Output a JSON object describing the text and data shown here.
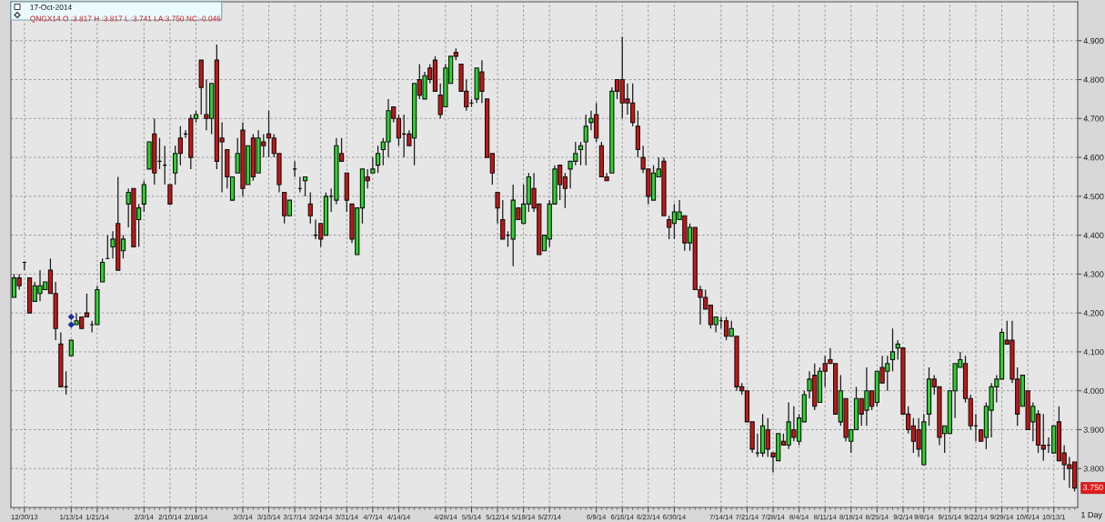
{
  "chart_data": {
    "type": "candlestick",
    "categories": [
      null,
      null,
      "12/30/13",
      null,
      null,
      null,
      null,
      null,
      null,
      null,
      null,
      "1/13/14",
      null,
      null,
      null,
      null,
      "1/21/14",
      null,
      null,
      null,
      null,
      null,
      null,
      null,
      null,
      "2/3/14",
      null,
      null,
      null,
      null,
      "2/10/14",
      null,
      null,
      null,
      null,
      "2/18/14",
      null,
      null,
      null,
      null,
      null,
      null,
      null,
      null,
      "3/3/14",
      null,
      null,
      null,
      null,
      "3/10/14",
      null,
      null,
      null,
      null,
      "3/17/14",
      null,
      null,
      null,
      null,
      "3/24/14",
      null,
      null,
      null,
      null,
      "3/31/14",
      null,
      null,
      null,
      null,
      "4/7/14",
      null,
      null,
      null,
      null,
      "4/14/14",
      null,
      null,
      null,
      null,
      null,
      null,
      null,
      null,
      "4/28/14",
      null,
      null,
      null,
      null,
      "5/5/14",
      null,
      null,
      null,
      null,
      "5/12/14",
      null,
      null,
      null,
      null,
      "5/19/14",
      null,
      null,
      null,
      null,
      "5/27/14",
      null,
      null,
      null,
      null,
      null,
      null,
      null,
      null,
      "6/9/14",
      null,
      null,
      null,
      null,
      "6/16/14",
      null,
      null,
      null,
      null,
      "6/23/14",
      null,
      null,
      null,
      null,
      "6/30/14",
      null,
      null,
      null,
      null,
      null,
      null,
      null,
      null,
      "7/14/14",
      null,
      null,
      null,
      null,
      "7/21/14",
      null,
      null,
      null,
      null,
      "7/28/14",
      null,
      null,
      null,
      null,
      "8/4/14",
      null,
      null,
      null,
      null,
      "8/11/14",
      null,
      null,
      null,
      null,
      "8/18/14",
      null,
      null,
      null,
      null,
      "8/25/14",
      null,
      null,
      null,
      null,
      "9/2/14",
      null,
      null,
      null,
      "9/8/14",
      null,
      null,
      null,
      null,
      "9/15/14",
      null,
      null,
      null,
      null,
      "9/22/14",
      null,
      null,
      null,
      null,
      "9/29/14",
      null,
      null,
      null,
      null,
      "10/6/14",
      null,
      null,
      null,
      null,
      "10/13/1",
      null,
      null,
      null,
      null
    ],
    "ohlc": [
      [
        4.24,
        4.3,
        4.24,
        4.29
      ],
      [
        4.29,
        4.3,
        4.26,
        4.27
      ],
      [
        4.33,
        4.33,
        4.31,
        4.33
      ],
      [
        4.29,
        4.29,
        4.2,
        4.2
      ],
      [
        4.23,
        4.28,
        4.23,
        4.27
      ],
      [
        4.25,
        4.31,
        4.23,
        4.27
      ],
      [
        4.26,
        4.28,
        4.26,
        4.28
      ],
      [
        4.31,
        4.34,
        4.25,
        4.25
      ],
      [
        4.25,
        4.28,
        4.13,
        4.16
      ],
      [
        4.12,
        4.15,
        4.01,
        4.01
      ],
      [
        4.01,
        4.05,
        3.99,
        4.01
      ],
      [
        4.09,
        4.13,
        4.09,
        4.13
      ],
      [
        4.17,
        4.2,
        4.17,
        4.18
      ],
      [
        4.19,
        4.19,
        4.16,
        4.16
      ],
      [
        4.2,
        4.25,
        4.19,
        4.19
      ],
      [
        4.17,
        4.18,
        4.15,
        4.17
      ],
      [
        4.17,
        4.27,
        4.17,
        4.26
      ],
      [
        4.28,
        4.34,
        4.28,
        4.33
      ],
      [
        4.34,
        4.4,
        4.34,
        4.34
      ],
      [
        4.37,
        4.41,
        4.34,
        4.39
      ],
      [
        4.43,
        4.55,
        4.31,
        4.31
      ],
      [
        4.36,
        4.4,
        4.34,
        4.39
      ],
      [
        4.48,
        4.52,
        4.42,
        4.51
      ],
      [
        4.52,
        4.52,
        4.37,
        4.37
      ],
      [
        4.44,
        4.48,
        4.37,
        4.47
      ],
      [
        4.48,
        4.54,
        4.46,
        4.53
      ],
      [
        4.57,
        4.64,
        4.57,
        4.64
      ],
      [
        4.66,
        4.7,
        4.53,
        4.56
      ],
      [
        4.59,
        4.65,
        4.57,
        4.59
      ],
      [
        4.58,
        4.63,
        4.53,
        4.58
      ],
      [
        4.53,
        4.53,
        4.48,
        4.48
      ],
      [
        4.56,
        4.63,
        4.53,
        4.61
      ],
      [
        4.65,
        4.68,
        4.58,
        4.61
      ],
      [
        4.66,
        4.67,
        4.65,
        4.66
      ],
      [
        4.7,
        4.71,
        4.57,
        4.6
      ],
      [
        4.7,
        4.72,
        4.69,
        4.71
      ],
      [
        4.85,
        4.85,
        4.71,
        4.78
      ],
      [
        4.71,
        4.8,
        4.67,
        4.7
      ],
      [
        4.7,
        4.79,
        4.66,
        4.79
      ],
      [
        4.85,
        4.89,
        4.57,
        4.59
      ],
      [
        4.65,
        4.69,
        4.51,
        4.64
      ],
      [
        4.62,
        4.62,
        4.52,
        4.55
      ],
      [
        4.49,
        4.55,
        4.49,
        4.55
      ],
      [
        4.56,
        4.65,
        4.56,
        4.61
      ],
      [
        4.67,
        4.69,
        4.5,
        4.52
      ],
      [
        4.53,
        4.63,
        4.53,
        4.63
      ],
      [
        4.65,
        4.66,
        4.54,
        4.55
      ],
      [
        4.56,
        4.67,
        4.56,
        4.65
      ],
      [
        4.64,
        4.66,
        4.6,
        4.63
      ],
      [
        4.66,
        4.72,
        4.6,
        4.65
      ],
      [
        4.65,
        4.66,
        4.6,
        4.61
      ],
      [
        4.61,
        4.61,
        4.51,
        4.53
      ],
      [
        4.51,
        4.51,
        4.43,
        4.45
      ],
      [
        4.45,
        4.49,
        4.45,
        4.49
      ],
      [
        4.57,
        4.59,
        4.55,
        4.57
      ],
      [
        4.52,
        4.55,
        4.51,
        4.52
      ],
      [
        4.54,
        4.55,
        4.5,
        4.55
      ],
      [
        4.48,
        4.51,
        4.43,
        4.45
      ],
      [
        4.4,
        4.44,
        4.39,
        4.4
      ],
      [
        4.43,
        4.43,
        4.37,
        4.39
      ],
      [
        4.4,
        4.51,
        4.4,
        4.5
      ],
      [
        4.5,
        4.52,
        4.46,
        4.5
      ],
      [
        4.49,
        4.65,
        4.48,
        4.63
      ],
      [
        4.61,
        4.65,
        4.59,
        4.59
      ],
      [
        4.56,
        4.56,
        4.46,
        4.49
      ],
      [
        4.48,
        4.48,
        4.38,
        4.39
      ],
      [
        4.35,
        4.47,
        4.35,
        4.47
      ],
      [
        4.47,
        4.57,
        4.43,
        4.57
      ],
      [
        4.55,
        4.57,
        4.52,
        4.54
      ],
      [
        4.56,
        4.6,
        4.56,
        4.57
      ],
      [
        4.58,
        4.63,
        4.56,
        4.61
      ],
      [
        4.62,
        4.65,
        4.58,
        4.64
      ],
      [
        4.64,
        4.75,
        4.6,
        4.72
      ],
      [
        4.73,
        4.73,
        4.69,
        4.7
      ],
      [
        4.7,
        4.71,
        4.63,
        4.65
      ],
      [
        4.66,
        4.71,
        4.6,
        4.66
      ],
      [
        4.66,
        4.67,
        4.63,
        4.63
      ],
      [
        4.65,
        4.79,
        4.58,
        4.79
      ],
      [
        4.8,
        4.84,
        4.75,
        4.76
      ],
      [
        4.75,
        4.82,
        4.75,
        4.81
      ],
      [
        4.83,
        4.84,
        4.79,
        4.8
      ],
      [
        4.85,
        4.86,
        4.77,
        4.77
      ],
      [
        4.76,
        4.79,
        4.7,
        4.71
      ],
      [
        4.73,
        4.84,
        4.73,
        4.83
      ],
      [
        4.79,
        4.86,
        4.79,
        4.86
      ],
      [
        4.87,
        4.88,
        4.85,
        4.86
      ],
      [
        4.84,
        4.84,
        4.77,
        4.77
      ],
      [
        4.77,
        4.8,
        4.72,
        4.73
      ],
      [
        4.74,
        4.75,
        4.73,
        4.74
      ],
      [
        4.75,
        4.83,
        4.74,
        4.83
      ],
      [
        4.82,
        4.85,
        4.74,
        4.77
      ],
      [
        4.75,
        4.75,
        4.6,
        4.6
      ],
      [
        4.61,
        4.61,
        4.53,
        4.56
      ],
      [
        4.51,
        4.51,
        4.43,
        4.47
      ],
      [
        4.44,
        4.49,
        4.39,
        4.39
      ],
      [
        4.4,
        4.41,
        4.37,
        4.4
      ],
      [
        4.39,
        4.53,
        4.32,
        4.49
      ],
      [
        4.47,
        4.47,
        4.44,
        4.44
      ],
      [
        4.43,
        4.53,
        4.43,
        4.48
      ],
      [
        4.48,
        4.56,
        4.46,
        4.55
      ],
      [
        4.52,
        4.56,
        4.46,
        4.47
      ],
      [
        4.48,
        4.48,
        4.35,
        4.35
      ],
      [
        4.36,
        4.4,
        4.36,
        4.4
      ],
      [
        4.39,
        4.49,
        4.37,
        4.48
      ],
      [
        4.48,
        4.58,
        4.48,
        4.57
      ],
      [
        4.58,
        4.58,
        4.49,
        4.53
      ],
      [
        4.55,
        4.56,
        4.47,
        4.52
      ],
      [
        4.57,
        4.59,
        4.52,
        4.59
      ],
      [
        4.59,
        4.64,
        4.58,
        4.61
      ],
      [
        4.62,
        4.64,
        4.58,
        4.63
      ],
      [
        4.64,
        4.71,
        4.58,
        4.68
      ],
      [
        4.69,
        4.72,
        4.67,
        4.7
      ],
      [
        4.71,
        4.74,
        4.64,
        4.65
      ],
      [
        4.63,
        4.64,
        4.55,
        4.55
      ],
      [
        4.55,
        4.56,
        4.54,
        4.54
      ],
      [
        4.56,
        4.78,
        4.56,
        4.77
      ],
      [
        4.8,
        4.8,
        4.75,
        4.77
      ],
      [
        4.8,
        4.91,
        4.7,
        4.74
      ],
      [
        4.75,
        4.79,
        4.71,
        4.74
      ],
      [
        4.74,
        4.79,
        4.68,
        4.69
      ],
      [
        4.68,
        4.72,
        4.6,
        4.62
      ],
      [
        4.6,
        4.63,
        4.56,
        4.57
      ],
      [
        4.57,
        4.57,
        4.48,
        4.5
      ],
      [
        4.49,
        4.58,
        4.49,
        4.56
      ],
      [
        4.55,
        4.6,
        4.55,
        4.57
      ],
      [
        4.59,
        4.6,
        4.45,
        4.45
      ],
      [
        4.44,
        4.45,
        4.39,
        4.42
      ],
      [
        4.43,
        4.48,
        4.39,
        4.46
      ],
      [
        4.44,
        4.49,
        4.44,
        4.46
      ],
      [
        4.45,
        4.45,
        4.36,
        4.38
      ],
      [
        4.38,
        4.43,
        4.36,
        4.42
      ],
      [
        4.42,
        4.42,
        4.26,
        4.26
      ],
      [
        4.26,
        4.27,
        4.17,
        4.24
      ],
      [
        4.24,
        4.26,
        4.21,
        4.21
      ],
      [
        4.22,
        4.22,
        4.16,
        4.17
      ],
      [
        4.17,
        4.19,
        4.15,
        4.19
      ],
      [
        4.18,
        4.19,
        4.16,
        4.18
      ],
      [
        4.18,
        4.19,
        4.13,
        4.14
      ],
      [
        4.14,
        4.18,
        4.14,
        4.16
      ],
      [
        4.14,
        4.14,
        4.0,
        4.01
      ],
      [
        4.01,
        4.02,
        3.99,
        4.0
      ],
      [
        4.0,
        4.0,
        3.92,
        3.92
      ],
      [
        3.92,
        3.92,
        3.84,
        3.85
      ],
      [
        3.84,
        3.89,
        3.83,
        3.84
      ],
      [
        3.84,
        3.94,
        3.83,
        3.91
      ],
      [
        3.9,
        3.93,
        3.83,
        3.85
      ],
      [
        3.84,
        3.84,
        3.79,
        3.83
      ],
      [
        3.82,
        3.89,
        3.82,
        3.89
      ],
      [
        3.87,
        3.89,
        3.86,
        3.86
      ],
      [
        3.86,
        3.97,
        3.85,
        3.92
      ],
      [
        3.9,
        3.96,
        3.87,
        3.88
      ],
      [
        3.87,
        3.94,
        3.86,
        3.93
      ],
      [
        3.92,
        4.0,
        3.92,
        3.99
      ],
      [
        4.0,
        4.05,
        3.98,
        4.03
      ],
      [
        4.04,
        4.07,
        3.95,
        3.96
      ],
      [
        3.97,
        4.06,
        3.97,
        4.05
      ],
      [
        4.07,
        4.09,
        4.01,
        4.05
      ],
      [
        4.08,
        4.11,
        4.07,
        4.07
      ],
      [
        4.07,
        4.07,
        3.94,
        3.94
      ],
      [
        3.92,
        4.04,
        3.91,
        4.0
      ],
      [
        3.98,
        3.98,
        3.87,
        3.88
      ],
      [
        3.87,
        3.9,
        3.84,
        3.9
      ],
      [
        3.9,
        4.01,
        3.9,
        3.98
      ],
      [
        3.98,
        3.98,
        3.91,
        3.94
      ],
      [
        3.95,
        4.06,
        3.91,
        4.0
      ],
      [
        4.0,
        4.0,
        3.95,
        3.96
      ],
      [
        3.97,
        4.05,
        3.96,
        4.05
      ],
      [
        4.06,
        4.09,
        4.02,
        4.02
      ],
      [
        4.05,
        4.09,
        4.0,
        4.07
      ],
      [
        4.08,
        4.16,
        4.05,
        4.1
      ],
      [
        4.11,
        4.13,
        4.08,
        4.12
      ],
      [
        4.11,
        4.11,
        3.94,
        3.94
      ],
      [
        3.94,
        3.96,
        3.89,
        3.9
      ],
      [
        3.91,
        3.93,
        3.84,
        3.87
      ],
      [
        3.9,
        3.93,
        3.83,
        3.85
      ],
      [
        3.81,
        3.94,
        3.81,
        3.92
      ],
      [
        3.94,
        4.06,
        3.91,
        4.03
      ],
      [
        4.03,
        4.04,
        3.99,
        4.01
      ],
      [
        4.01,
        4.01,
        3.86,
        3.88
      ],
      [
        3.89,
        3.91,
        3.84,
        3.91
      ],
      [
        3.89,
        4.0,
        3.89,
        4.0
      ],
      [
        4.0,
        4.07,
        3.93,
        4.07
      ],
      [
        4.06,
        4.1,
        4.06,
        4.08
      ],
      [
        4.07,
        4.09,
        3.97,
        3.98
      ],
      [
        3.98,
        3.99,
        3.9,
        3.91
      ],
      [
        3.91,
        3.94,
        3.87,
        3.91
      ],
      [
        3.9,
        3.9,
        3.87,
        3.87
      ],
      [
        3.88,
        3.97,
        3.85,
        3.96
      ],
      [
        3.95,
        4.02,
        3.88,
        4.01
      ],
      [
        4.01,
        4.04,
        3.97,
        4.03
      ],
      [
        4.03,
        4.16,
        4.03,
        4.15
      ],
      [
        4.13,
        4.18,
        4.12,
        4.12
      ],
      [
        4.13,
        4.18,
        4.02,
        4.03
      ],
      [
        4.03,
        4.06,
        3.91,
        3.94
      ],
      [
        3.96,
        4.04,
        3.96,
        4.04
      ],
      [
        4.0,
        4.0,
        3.9,
        3.9
      ],
      [
        3.92,
        3.97,
        3.87,
        3.96
      ],
      [
        3.94,
        3.95,
        3.84,
        3.86
      ],
      [
        3.86,
        3.94,
        3.82,
        3.85
      ],
      [
        3.86,
        3.88,
        3.84,
        3.86
      ],
      [
        3.84,
        3.91,
        3.84,
        3.91
      ],
      [
        3.92,
        3.96,
        3.82,
        3.82
      ],
      [
        3.84,
        3.86,
        3.77,
        3.81
      ],
      [
        3.81,
        3.83,
        3.75,
        3.8
      ],
      [
        3.817,
        3.817,
        3.741,
        3.75
      ]
    ],
    "colors": [
      "#2bd62b",
      "#cc1414",
      "#000000",
      "#cc1414",
      "#2bd62b",
      "#2bd62b",
      "#2bd62b",
      "#cc1414",
      "#cc1414",
      "#cc1414",
      "#000000",
      "#2bd62b",
      "#2bd62b",
      "#cc1414",
      "#cc1414",
      "#000000",
      "#2bd62b",
      "#2bd62b",
      "#000000",
      "#2bd62b",
      "#cc1414",
      "#2bd62b",
      "#2bd62b",
      "#cc1414",
      "#2bd62b",
      "#2bd62b",
      "#2bd62b",
      "#cc1414",
      "#000000",
      "#000000",
      "#cc1414",
      "#2bd62b",
      "#cc1414",
      "#000000",
      "#cc1414",
      "#2bd62b",
      "#cc1414",
      "#cc1414",
      "#2bd62b",
      "#cc1414",
      "#cc1414",
      "#cc1414",
      "#2bd62b",
      "#2bd62b",
      "#cc1414",
      "#2bd62b",
      "#cc1414",
      "#2bd62b",
      "#cc1414",
      "#cc1414",
      "#cc1414",
      "#cc1414",
      "#cc1414",
      "#2bd62b",
      "#000000",
      "#000000",
      "#2bd62b",
      "#cc1414",
      "#000000",
      "#cc1414",
      "#2bd62b",
      "#000000",
      "#2bd62b",
      "#cc1414",
      "#cc1414",
      "#cc1414",
      "#2bd62b",
      "#2bd62b",
      "#cc1414",
      "#2bd62b",
      "#2bd62b",
      "#2bd62b",
      "#2bd62b",
      "#cc1414",
      "#cc1414",
      "#000000",
      "#cc1414",
      "#2bd62b",
      "#cc1414",
      "#2bd62b",
      "#cc1414",
      "#cc1414",
      "#cc1414",
      "#2bd62b",
      "#2bd62b",
      "#cc1414",
      "#cc1414",
      "#cc1414",
      "#000000",
      "#2bd62b",
      "#cc1414",
      "#cc1414",
      "#cc1414",
      "#cc1414",
      "#cc1414",
      "#000000",
      "#2bd62b",
      "#cc1414",
      "#2bd62b",
      "#2bd62b",
      "#cc1414",
      "#cc1414",
      "#2bd62b",
      "#2bd62b",
      "#2bd62b",
      "#cc1414",
      "#cc1414",
      "#2bd62b",
      "#2bd62b",
      "#2bd62b",
      "#2bd62b",
      "#2bd62b",
      "#cc1414",
      "#cc1414",
      "#cc1414",
      "#2bd62b",
      "#cc1414",
      "#cc1414",
      "#cc1414",
      "#cc1414",
      "#cc1414",
      "#cc1414",
      "#cc1414",
      "#2bd62b",
      "#2bd62b",
      "#cc1414",
      "#cc1414",
      "#2bd62b",
      "#2bd62b",
      "#cc1414",
      "#2bd62b",
      "#cc1414",
      "#cc1414",
      "#cc1414",
      "#cc1414",
      "#2bd62b",
      "#000000",
      "#cc1414",
      "#2bd62b",
      "#cc1414",
      "#cc1414",
      "#cc1414",
      "#cc1414",
      "#000000",
      "#2bd62b",
      "#cc1414",
      "#cc1414",
      "#2bd62b",
      "#cc1414",
      "#2bd62b",
      "#cc1414",
      "#2bd62b",
      "#2bd62b",
      "#2bd62b",
      "#cc1414",
      "#2bd62b",
      "#cc1414",
      "#cc1414",
      "#cc1414",
      "#2bd62b",
      "#cc1414",
      "#2bd62b",
      "#2bd62b",
      "#cc1414",
      "#2bd62b",
      "#cc1414",
      "#2bd62b",
      "#cc1414",
      "#2bd62b",
      "#2bd62b",
      "#2bd62b",
      "#cc1414",
      "#cc1414",
      "#cc1414",
      "#cc1414",
      "#2bd62b",
      "#2bd62b",
      "#cc1414",
      "#cc1414",
      "#2bd62b",
      "#2bd62b",
      "#2bd62b",
      "#2bd62b",
      "#cc1414",
      "#cc1414",
      "#000000",
      "#cc1414",
      "#2bd62b",
      "#2bd62b",
      "#2bd62b",
      "#2bd62b",
      "#cc1414",
      "#cc1414",
      "#cc1414",
      "#2bd62b",
      "#cc1414",
      "#2bd62b",
      "#cc1414",
      "#cc1414",
      "#000000",
      "#2bd62b",
      "#cc1414",
      "#cc1414",
      "#cc1414",
      "#cc1414"
    ],
    "series": [
      {
        "type": "scatter",
        "x": [
          "1/13/14",
          "1/13/14"
        ],
        "values": [
          4.19,
          4.17
        ],
        "color": "#1c2f9c",
        "marker": "diamond"
      }
    ],
    "xlabel": "1 Day",
    "ylim": [
      3.7,
      5.0
    ],
    "yticks": [
      {
        "value": 3.8,
        "label": "3.800"
      },
      {
        "value": 3.9,
        "label": "3.900"
      },
      {
        "value": 4.0,
        "label": "4.000"
      },
      {
        "value": 4.1,
        "label": "4.100"
      },
      {
        "value": 4.2,
        "label": "4.200"
      },
      {
        "value": 4.3,
        "label": "4.300"
      },
      {
        "value": 4.4,
        "label": "4.400"
      },
      {
        "value": 4.5,
        "label": "4.500"
      },
      {
        "value": 4.6,
        "label": "4.600"
      },
      {
        "value": 4.7,
        "label": "4.700"
      },
      {
        "value": 4.8,
        "label": "4.800"
      },
      {
        "value": 4.9,
        "label": "4.900"
      }
    ],
    "grid": true,
    "annotations": [
      "17-Oct-2014",
      "QNGX14 O :3.817 H :3.817 L :3.741 LA:3.750 NC:-0.046",
      "3.750"
    ]
  }
}
